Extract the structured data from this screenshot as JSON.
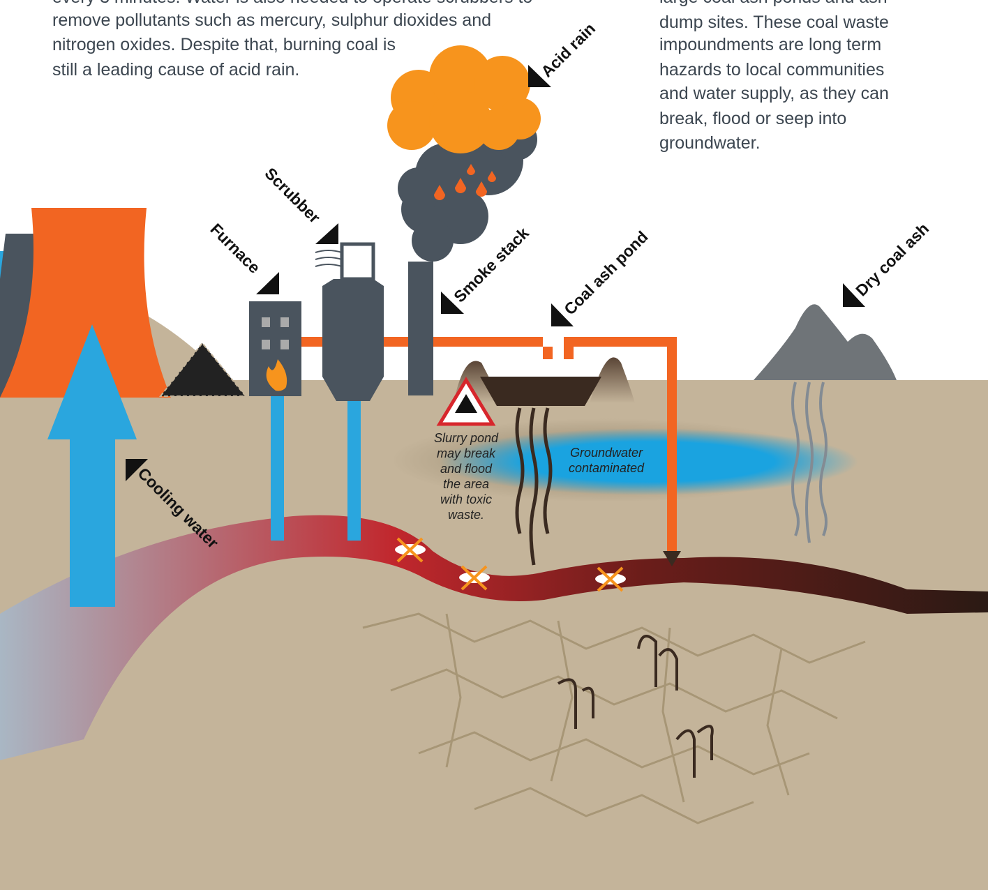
{
  "intro_text": {
    "lines": [
      "every 3 minutes. Water is also needed to operate scrubbers to",
      "remove pollutants such as mercury, sulphur dioxides and",
      "nitrogen oxides. Despite that, burning coal is",
      "still a leading cause of acid rain."
    ]
  },
  "waste_text": {
    "lines": [
      "large coal ash ponds and ash",
      "dump sites. These coal waste",
      "impoundments are long term",
      "hazards to local communities",
      "and water supply, as they can",
      "break, flood or seep into",
      "groundwater."
    ]
  },
  "labels": {
    "acid_rain": "Acid rain",
    "scrubber": "Scrubber",
    "furnace": "Furnace",
    "smoke_stack": "Smoke stack",
    "coal_ash_pond": "Coal ash pond",
    "dry_coal_ash": "Dry coal ash",
    "cooling_water": "Cooling water"
  },
  "warning": {
    "lines": [
      "Slurry pond",
      "may break",
      "and flood",
      "the area",
      "with toxic",
      "waste."
    ]
  },
  "groundwater": {
    "lines": [
      "Groundwater",
      "contaminated"
    ]
  }
}
